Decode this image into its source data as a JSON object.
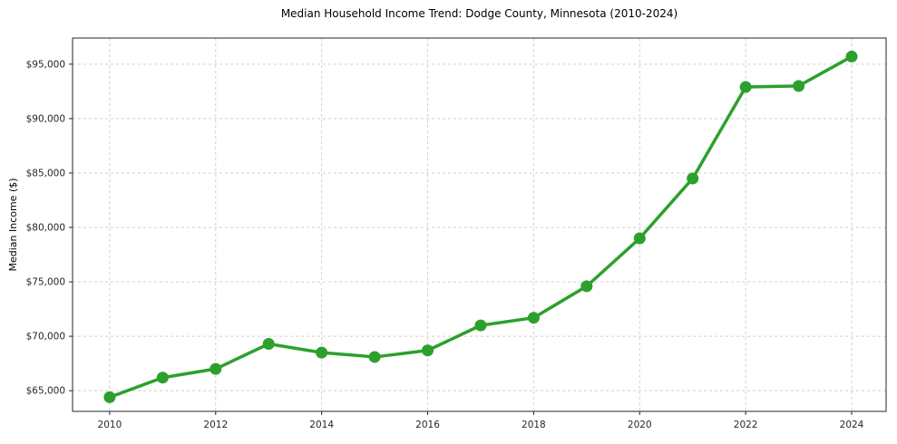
{
  "page": {
    "background": "#ffffff"
  },
  "chart_data": {
    "type": "line",
    "title": "Median Household Income Trend: Dodge County, Minnesota (2010-2024)",
    "xlabel": "",
    "ylabel": "Median Income ($)",
    "x": [
      2010,
      2011,
      2012,
      2013,
      2014,
      2015,
      2016,
      2017,
      2018,
      2019,
      2020,
      2021,
      2022,
      2023,
      2024
    ],
    "values": [
      64400,
      66200,
      67000,
      69300,
      68500,
      68100,
      68700,
      71000,
      71700,
      74600,
      79000,
      84500,
      92900,
      93000,
      95700
    ],
    "series_name": "Median Household Income",
    "xlim": [
      2009.3,
      2024.65
    ],
    "ylim": [
      63100,
      97400
    ],
    "x_ticks": [
      2010,
      2012,
      2014,
      2016,
      2018,
      2020,
      2022,
      2024
    ],
    "y_ticks": [
      65000,
      70000,
      75000,
      80000,
      85000,
      90000,
      95000
    ],
    "y_tick_labels": [
      "$65,000",
      "$70,000",
      "$75,000",
      "$80,000",
      "$85,000",
      "$90,000",
      "$95,000"
    ],
    "grid": true,
    "grid_style": "dashed",
    "legend": "none",
    "line_color": "#2ca02c",
    "marker": "circle",
    "colors": {
      "grid": "#cfcfcf",
      "axis": "#262626",
      "text": "#262626",
      "background": "#ffffff"
    }
  }
}
